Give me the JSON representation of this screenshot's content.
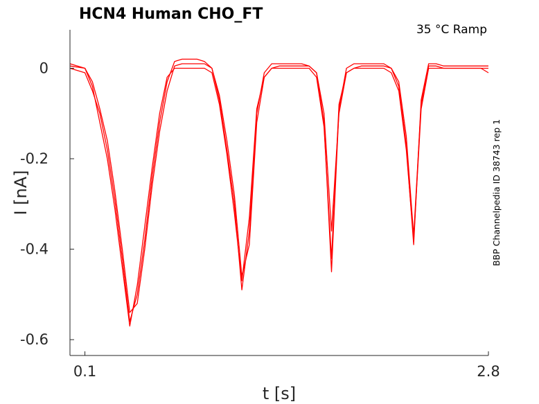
{
  "chart_data": {
    "type": "line",
    "title": "HCN4  Human  CHO_FT",
    "annotation": "35 °C  Ramp",
    "side_label": "BBP Channelpedia ID 38743 rep 1",
    "xlabel": "t [s]",
    "ylabel": "I [nA]",
    "xlim": [
      0.0,
      2.8
    ],
    "ylim": [
      -0.635,
      0.085
    ],
    "x_ticks": [
      {
        "value": 0.1,
        "label": "0.1"
      },
      {
        "value": 2.8,
        "label": "2.8"
      }
    ],
    "y_ticks": [
      {
        "value": 0,
        "label": "0"
      },
      {
        "value": -0.2,
        "label": "-0.2"
      },
      {
        "value": -0.4,
        "label": "-0.4"
      },
      {
        "value": -0.6,
        "label": "-0.6"
      }
    ],
    "grid": false,
    "line_color": "#ff0000",
    "series": [
      {
        "x": [
          0.0,
          0.1,
          0.15,
          0.2,
          0.25,
          0.3,
          0.35,
          0.4,
          0.45,
          0.5,
          0.55,
          0.6,
          0.65,
          0.7,
          0.75,
          0.8,
          0.85,
          0.9,
          0.95,
          1.0,
          1.05,
          1.1,
          1.15,
          1.2,
          1.25,
          1.3,
          1.35,
          1.4,
          1.45,
          1.5,
          1.55,
          1.6,
          1.65,
          1.7,
          1.75,
          1.8,
          1.85,
          1.9,
          1.95,
          2.0,
          2.05,
          2.1,
          2.15,
          2.2,
          2.25,
          2.3,
          2.35,
          2.4,
          2.45,
          2.5,
          2.55,
          2.6,
          2.65,
          2.7,
          2.75,
          2.8
        ],
        "y": [
          0.005,
          0.0,
          -0.03,
          -0.09,
          -0.16,
          -0.27,
          -0.4,
          -0.54,
          -0.52,
          -0.4,
          -0.26,
          -0.14,
          -0.05,
          0.005,
          0.01,
          0.01,
          0.01,
          0.01,
          0.0,
          -0.06,
          -0.16,
          -0.28,
          -0.46,
          -0.39,
          -0.12,
          -0.02,
          0.0,
          0.005,
          0.005,
          0.005,
          0.005,
          0.005,
          -0.01,
          -0.1,
          -0.36,
          -0.1,
          -0.01,
          0.0,
          0.005,
          0.005,
          0.005,
          0.005,
          0.0,
          -0.03,
          -0.15,
          -0.37,
          -0.08,
          0.005,
          0.005,
          0.0,
          0.0,
          0.0,
          0.0,
          0.0,
          0.0,
          0.0
        ]
      },
      {
        "x": [
          0.0,
          0.1,
          0.15,
          0.2,
          0.25,
          0.3,
          0.35,
          0.4,
          0.45,
          0.5,
          0.55,
          0.6,
          0.65,
          0.7,
          0.75,
          0.8,
          0.85,
          0.9,
          0.95,
          1.0,
          1.05,
          1.1,
          1.15,
          1.2,
          1.25,
          1.3,
          1.35,
          1.4,
          1.45,
          1.5,
          1.55,
          1.6,
          1.65,
          1.7,
          1.75,
          1.8,
          1.85,
          1.9,
          1.95,
          2.0,
          2.05,
          2.1,
          2.15,
          2.2,
          2.25,
          2.3,
          2.35,
          2.4,
          2.45,
          2.5,
          2.55,
          2.6,
          2.65,
          2.7,
          2.75,
          2.8
        ],
        "y": [
          0.0,
          -0.01,
          -0.05,
          -0.1,
          -0.18,
          -0.29,
          -0.42,
          -0.56,
          -0.5,
          -0.38,
          -0.24,
          -0.12,
          -0.03,
          0.015,
          0.02,
          0.02,
          0.02,
          0.015,
          0.0,
          -0.07,
          -0.18,
          -0.3,
          -0.49,
          -0.36,
          -0.1,
          -0.01,
          0.01,
          0.01,
          0.01,
          0.01,
          0.01,
          0.005,
          -0.01,
          -0.12,
          -0.45,
          -0.09,
          0.0,
          0.01,
          0.01,
          0.01,
          0.01,
          0.01,
          0.0,
          -0.04,
          -0.17,
          -0.39,
          -0.07,
          0.01,
          0.01,
          0.005,
          0.005,
          0.005,
          0.005,
          0.005,
          0.005,
          0.005
        ]
      },
      {
        "x": [
          0.0,
          0.1,
          0.15,
          0.2,
          0.25,
          0.3,
          0.35,
          0.4,
          0.45,
          0.5,
          0.55,
          0.6,
          0.65,
          0.7,
          0.75,
          0.8,
          0.85,
          0.9,
          0.95,
          1.0,
          1.05,
          1.1,
          1.15,
          1.2,
          1.25,
          1.3,
          1.35,
          1.4,
          1.45,
          1.5,
          1.55,
          1.6,
          1.65,
          1.7,
          1.75,
          1.8,
          1.85,
          1.9,
          1.95,
          2.0,
          2.05,
          2.1,
          2.15,
          2.2,
          2.25,
          2.3,
          2.35,
          2.4,
          2.45,
          2.5,
          2.55,
          2.6,
          2.65,
          2.7,
          2.75,
          2.8
        ],
        "y": [
          0.01,
          0.0,
          -0.04,
          -0.12,
          -0.2,
          -0.31,
          -0.44,
          -0.57,
          -0.48,
          -0.35,
          -0.22,
          -0.1,
          -0.02,
          0.0,
          0.0,
          0.0,
          0.0,
          0.0,
          -0.01,
          -0.08,
          -0.19,
          -0.32,
          -0.47,
          -0.33,
          -0.09,
          -0.02,
          0.0,
          0.0,
          0.0,
          0.0,
          0.0,
          0.0,
          -0.02,
          -0.13,
          -0.42,
          -0.08,
          -0.01,
          0.0,
          0.0,
          0.0,
          0.0,
          0.0,
          -0.01,
          -0.05,
          -0.18,
          -0.38,
          -0.09,
          0.0,
          0.0,
          0.0,
          0.0,
          0.0,
          0.0,
          0.0,
          0.0,
          -0.01
        ]
      }
    ]
  }
}
